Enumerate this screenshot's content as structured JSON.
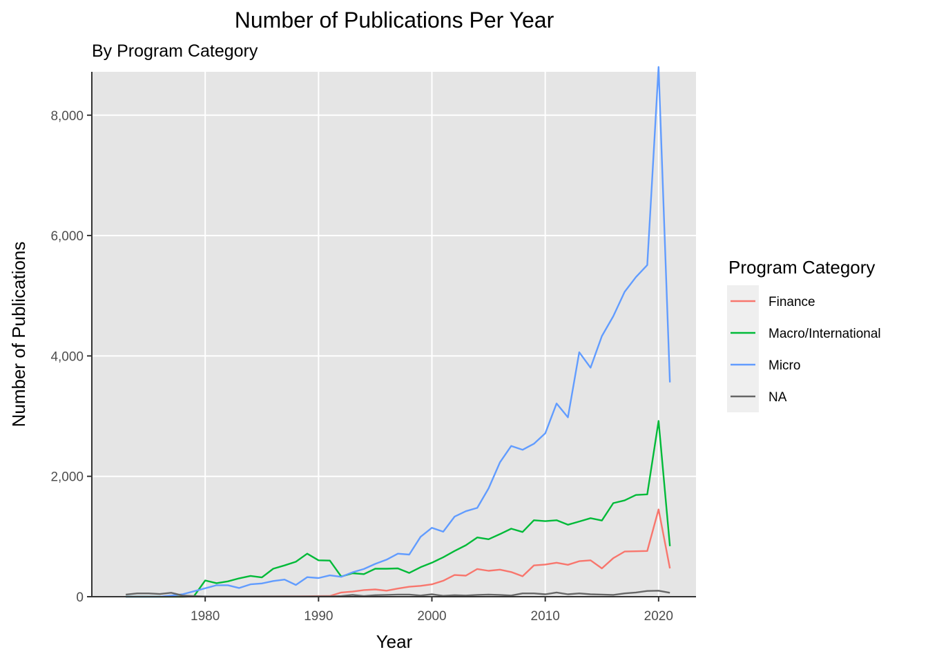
{
  "chart_data": {
    "type": "line",
    "title": "Number of Publications Per Year",
    "subtitle": "By Program Category",
    "xlabel": "Year",
    "ylabel": "Number of Publications",
    "xlim": [
      1970,
      2023.3
    ],
    "ylim": [
      0,
      8720
    ],
    "x_ticks": [
      1980,
      1990,
      2000,
      2010,
      2020
    ],
    "x_tick_labels": [
      "1980",
      "1990",
      "2000",
      "2010",
      "2020"
    ],
    "y_ticks": [
      0,
      2000,
      4000,
      6000,
      8000
    ],
    "y_tick_labels": [
      "0",
      "2,000",
      "4,000",
      "6,000",
      "8,000"
    ],
    "grid": true,
    "legend_title": "Program Category",
    "legend_position": "right",
    "series": [
      {
        "name": "Finance",
        "color": "#F8766D",
        "x": [
          1973,
          1974,
          1975,
          1976,
          1977,
          1978,
          1979,
          1980,
          1981,
          1982,
          1983,
          1984,
          1985,
          1986,
          1987,
          1988,
          1989,
          1990,
          1991,
          1992,
          1993,
          1994,
          1995,
          1996,
          1997,
          1998,
          1999,
          2000,
          2001,
          2002,
          2003,
          2004,
          2005,
          2006,
          2007,
          2008,
          2009,
          2010,
          2011,
          2012,
          2013,
          2014,
          2015,
          2016,
          2017,
          2018,
          2019,
          2020,
          2021
        ],
        "values": [
          0,
          0,
          0,
          0,
          0,
          0,
          2,
          2,
          3,
          3,
          4,
          4,
          5,
          5,
          6,
          7,
          8,
          10,
          12,
          70,
          85,
          110,
          120,
          100,
          135,
          165,
          180,
          205,
          265,
          360,
          350,
          460,
          430,
          450,
          410,
          340,
          520,
          535,
          565,
          530,
          590,
          605,
          470,
          640,
          750,
          755,
          760,
          1450,
          470
        ]
      },
      {
        "name": "Macro/International",
        "color": "#00BA38",
        "x": [
          1973,
          1974,
          1975,
          1976,
          1977,
          1978,
          1979,
          1980,
          1981,
          1982,
          1983,
          1984,
          1985,
          1986,
          1987,
          1988,
          1989,
          1990,
          1991,
          1992,
          1993,
          1994,
          1995,
          1996,
          1997,
          1998,
          1999,
          2000,
          2001,
          2002,
          2003,
          2004,
          2005,
          2006,
          2007,
          2008,
          2009,
          2010,
          2011,
          2012,
          2013,
          2014,
          2015,
          2016,
          2017,
          2018,
          2019,
          2020,
          2021
        ],
        "values": [
          0,
          0,
          0,
          0,
          0,
          0,
          5,
          270,
          225,
          255,
          305,
          345,
          320,
          465,
          520,
          580,
          715,
          605,
          600,
          335,
          390,
          375,
          465,
          465,
          470,
          395,
          490,
          565,
          655,
          760,
          855,
          985,
          955,
          1040,
          1130,
          1075,
          1270,
          1255,
          1270,
          1195,
          1250,
          1305,
          1265,
          1555,
          1600,
          1690,
          1700,
          2920,
          840
        ]
      },
      {
        "name": "Micro",
        "color": "#619CFF",
        "x": [
          1973,
          1974,
          1975,
          1976,
          1977,
          1978,
          1979,
          1980,
          1981,
          1982,
          1983,
          1984,
          1985,
          1986,
          1987,
          1988,
          1989,
          1990,
          1991,
          1992,
          1993,
          1994,
          1995,
          1996,
          1997,
          1998,
          1999,
          2000,
          2001,
          2002,
          2003,
          2004,
          2005,
          2006,
          2007,
          2008,
          2009,
          2010,
          2011,
          2012,
          2013,
          2014,
          2015,
          2016,
          2017,
          2018,
          2019,
          2020,
          2021
        ],
        "values": [
          0,
          0,
          0,
          0,
          20,
          40,
          90,
          140,
          190,
          190,
          145,
          205,
          220,
          260,
          285,
          195,
          325,
          310,
          355,
          330,
          405,
          460,
          545,
          615,
          715,
          700,
          995,
          1145,
          1080,
          1330,
          1420,
          1475,
          1800,
          2230,
          2505,
          2440,
          2540,
          2715,
          3210,
          2980,
          4060,
          3805,
          4330,
          4660,
          5065,
          5310,
          5510,
          8800,
          3560
        ]
      },
      {
        "name": "NA",
        "color": "#666666",
        "x": [
          1973,
          1974,
          1975,
          1976,
          1977,
          1978,
          1979,
          1980,
          1981,
          1982,
          1983,
          1984,
          1985,
          1986,
          1987,
          1988,
          1989,
          1990,
          1991,
          1992,
          1993,
          1994,
          1995,
          1996,
          1997,
          1998,
          1999,
          2000,
          2001,
          2002,
          2003,
          2004,
          2005,
          2006,
          2007,
          2008,
          2009,
          2010,
          2011,
          2012,
          2013,
          2014,
          2015,
          2016,
          2017,
          2018,
          2019,
          2020,
          2021
        ],
        "values": [
          35,
          55,
          55,
          45,
          65,
          20,
          10,
          5,
          5,
          5,
          5,
          5,
          5,
          5,
          5,
          5,
          5,
          5,
          5,
          10,
          30,
          10,
          25,
          30,
          35,
          35,
          20,
          40,
          15,
          25,
          20,
          30,
          35,
          30,
          20,
          55,
          55,
          40,
          70,
          40,
          55,
          40,
          35,
          30,
          55,
          70,
          95,
          100,
          65
        ]
      }
    ]
  }
}
